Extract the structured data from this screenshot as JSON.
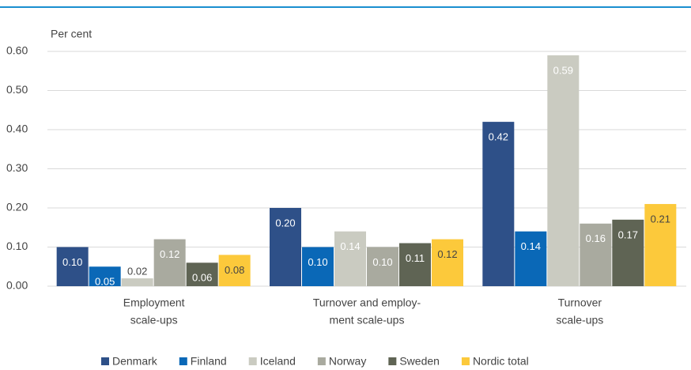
{
  "chart_data": {
    "type": "bar",
    "y_label": "Per cent",
    "categories": [
      [
        "Employment",
        "scale-ups"
      ],
      [
        "Turnover and employ-",
        "ment scale-ups"
      ],
      [
        "Turnover",
        "scale-ups"
      ]
    ],
    "series": [
      {
        "name": "Denmark",
        "color": "#2e5088",
        "values": [
          0.1,
          0.2,
          0.42
        ],
        "value_labels": [
          "0.10",
          "0.20",
          "0.42"
        ]
      },
      {
        "name": "Finland",
        "color": "#0a68b7",
        "values": [
          0.05,
          0.1,
          0.14
        ],
        "value_labels": [
          "0.05",
          "0.10",
          "0.14"
        ]
      },
      {
        "name": "Iceland",
        "color": "#cacbc1",
        "values": [
          0.02,
          0.14,
          0.59
        ],
        "value_labels": [
          "0.02",
          "0.14",
          "0.59"
        ]
      },
      {
        "name": "Norway",
        "color": "#a9aa9f",
        "values": [
          0.12,
          0.1,
          0.16
        ],
        "value_labels": [
          "0.12",
          "0.10",
          "0.16"
        ]
      },
      {
        "name": "Sweden",
        "color": "#5f6454",
        "values": [
          0.06,
          0.11,
          0.17
        ],
        "value_labels": [
          "0.06",
          "0.11",
          "0.17"
        ]
      },
      {
        "name": "Nordic total",
        "color": "#fcc93b",
        "values": [
          0.08,
          0.12,
          0.21
        ],
        "value_labels": [
          "0.08",
          "0.12",
          "0.21"
        ]
      }
    ],
    "ylim": [
      0,
      0.6
    ],
    "yticks": [
      {
        "value": 0,
        "label": "0.00"
      },
      {
        "value": 0.1,
        "label": "0.10"
      },
      {
        "value": 0.2,
        "label": "0.20"
      },
      {
        "value": 0.3,
        "label": "0.30"
      },
      {
        "value": 0.4,
        "label": "0.40"
      },
      {
        "value": 0.5,
        "label": "0.50"
      },
      {
        "value": 0.6,
        "label": "0.60"
      }
    ],
    "grid": true,
    "legend": "bottom"
  }
}
